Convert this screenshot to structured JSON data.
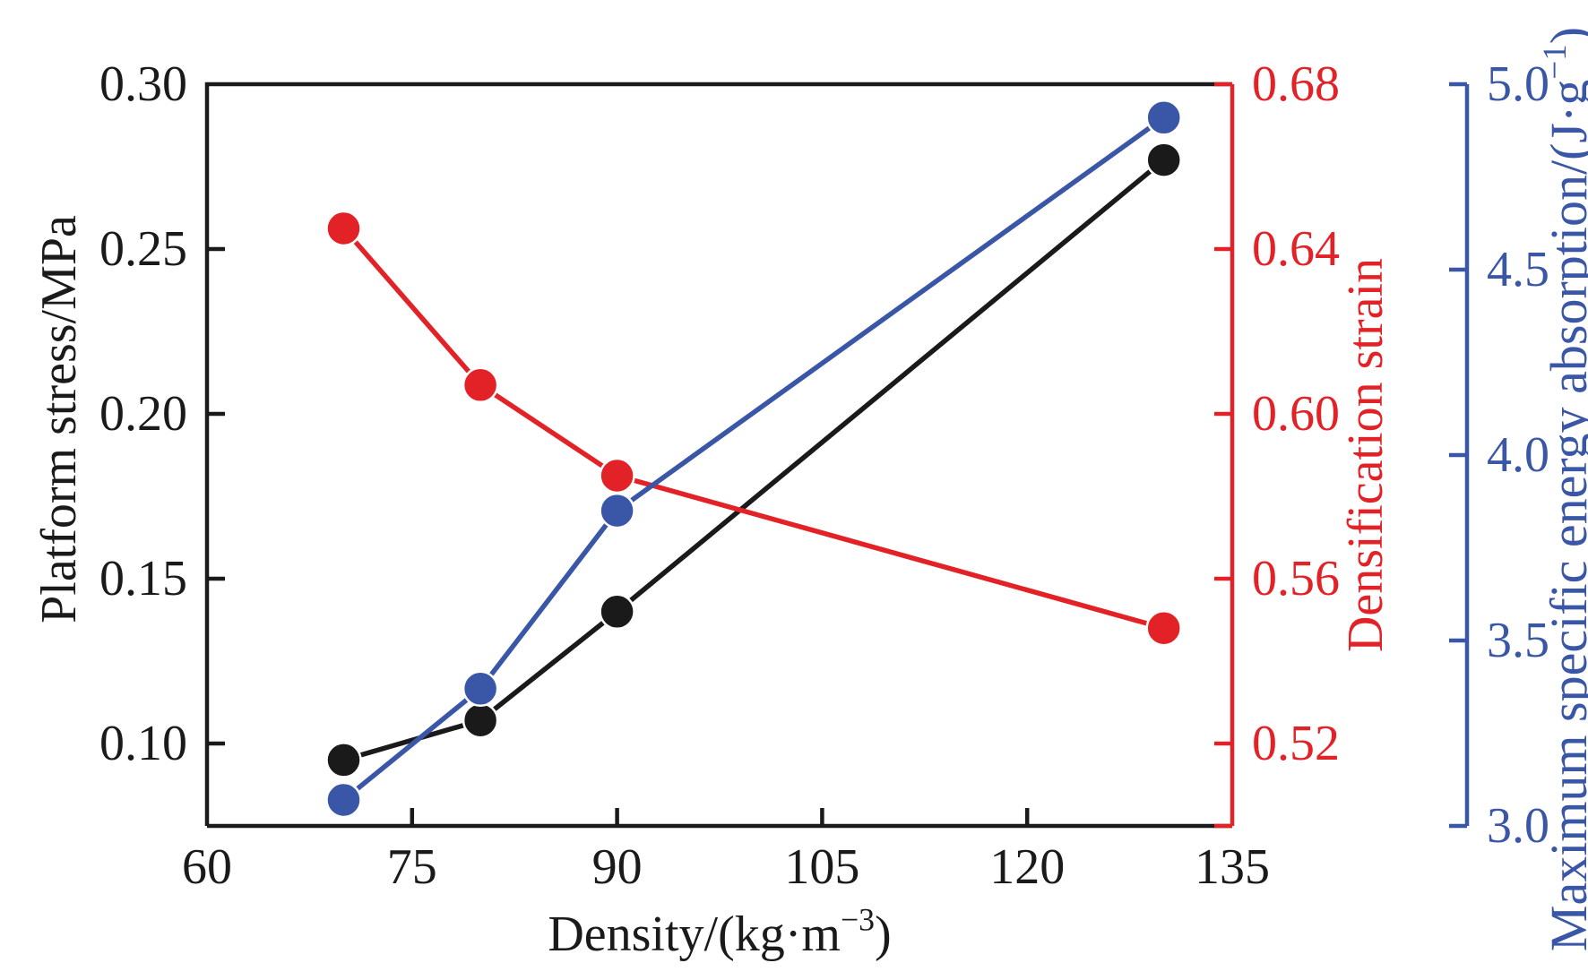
{
  "figure": {
    "kind": "scientific-line-chart",
    "background": "#ffffff",
    "legend": "none",
    "grid": false
  },
  "chart_data": {
    "type": "line",
    "title": "",
    "x": [
      70,
      80,
      90,
      130
    ],
    "series": [
      {
        "name": "Platform stress",
        "axis": "left",
        "color": "#1a1a1a",
        "marker": "circle",
        "values": [
          0.095,
          0.107,
          0.14,
          0.277
        ]
      },
      {
        "name": "Densification strain",
        "axis": "strain",
        "color": "#e32228",
        "marker": "circle",
        "values": [
          0.645,
          0.607,
          0.585,
          0.548
        ]
      },
      {
        "name": "Maximum specific energy absorption",
        "axis": "energy",
        "color": "#3a56a6",
        "marker": "circle",
        "values": [
          3.07,
          3.37,
          3.85,
          4.91
        ]
      }
    ],
    "x_axis": {
      "label": "Density/(kg·m^{−3})",
      "min": 60,
      "max": 135,
      "tick_values": [
        60,
        75,
        90,
        105,
        120,
        135
      ],
      "tick_labels": [
        "60",
        "75",
        "90",
        "105",
        "120",
        "135"
      ],
      "color": "#1a1a1a"
    },
    "left_axis": {
      "label": "Platform stress/MPa",
      "min": 0.075,
      "max": 0.3,
      "tick_values": [
        0.3,
        0.25,
        0.2,
        0.15,
        0.1
      ],
      "tick_labels": [
        "0.30",
        "0.25",
        "0.20",
        "0.15",
        "0.10"
      ],
      "color": "#1a1a1a"
    },
    "strain_axis": {
      "label": "Densification strain",
      "min": 0.5,
      "max": 0.68,
      "tick_values": [
        0.68,
        0.64,
        0.6,
        0.56,
        0.52
      ],
      "tick_labels": [
        "0.68",
        "0.64",
        "0.60",
        "0.56",
        "0.52"
      ],
      "end_tick_at_min": true,
      "color": "#e32228"
    },
    "energy_axis": {
      "label": "Maximum specific energy absorption/(J·g^{−1})",
      "min": 3.0,
      "max": 5.0,
      "tick_values": [
        5.0,
        4.5,
        4.0,
        3.5,
        3.0
      ],
      "tick_labels": [
        "5.0",
        "4.5",
        "4.0",
        "3.5",
        "3.0"
      ],
      "color": "#3a56a6"
    }
  }
}
